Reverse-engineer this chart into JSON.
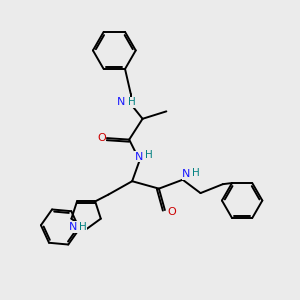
{
  "bg_color": "#ebebeb",
  "atom_colors": {
    "N_blue": "#1a1aff",
    "N_H_color": "#008080",
    "O": "#cc0000",
    "C": "#000000"
  },
  "line_color": "#000000",
  "line_width": 1.4,
  "figsize": [
    3.0,
    3.0
  ],
  "dpi": 100,
  "xlim": [
    0,
    10
  ],
  "ylim": [
    0,
    10
  ]
}
